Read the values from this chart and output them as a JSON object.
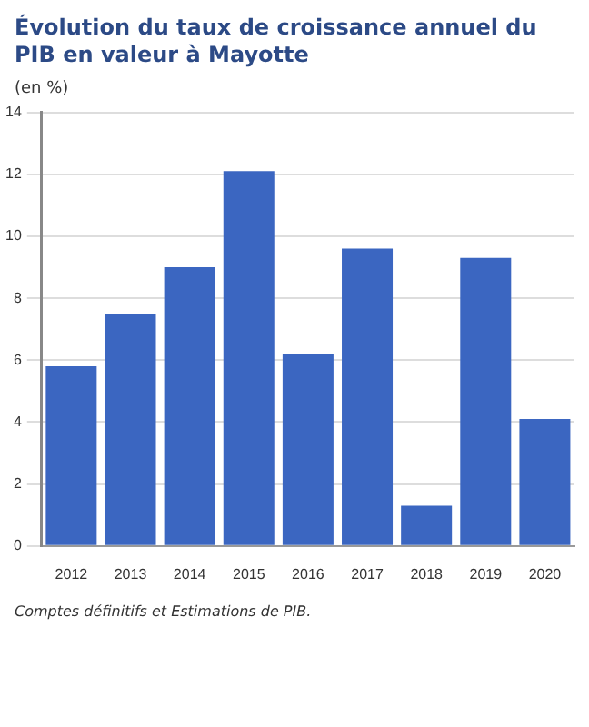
{
  "chart_data": {
    "type": "bar",
    "title": "Évolution du taux de croissance annuel du PIB en valeur à Mayotte",
    "ylabel": "(en %)",
    "categories": [
      "2012",
      "2013",
      "2014",
      "2015",
      "2016",
      "2017",
      "2018",
      "2019",
      "2020"
    ],
    "values": [
      5.8,
      7.5,
      9.0,
      12.1,
      6.2,
      9.6,
      1.3,
      9.3,
      4.1
    ],
    "color": "#3b66c1",
    "ylim": [
      0,
      14
    ],
    "yticks": [
      0,
      2,
      4,
      6,
      8,
      10,
      12,
      14
    ],
    "grid": "y",
    "legend": false,
    "annotations": [
      "Comptes définitifs et Estimations de PIB."
    ]
  }
}
